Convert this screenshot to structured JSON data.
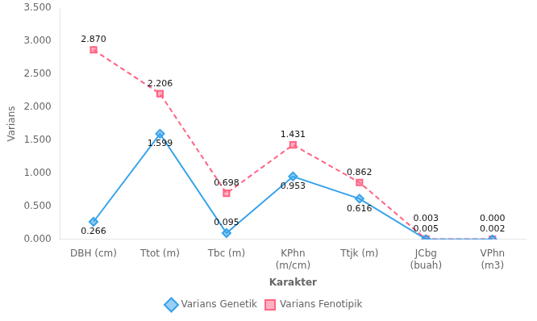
{
  "chart_data": {
    "type": "line",
    "categories": [
      "DBH (cm)",
      "Ttot (m)",
      "Tbc (m)",
      "KPhn\n(m/cm)",
      "Ttjk (m)",
      "JCbg\n(buah)",
      "VPhn\n(m3)"
    ],
    "series": [
      {
        "name": "Varians Genetik",
        "marker": "diamond",
        "line_style": "solid",
        "values": [
          0.266,
          1.599,
          0.095,
          0.953,
          0.616,
          0.003,
          0.0
        ],
        "value_labels": [
          "0.266",
          "1.599",
          "0.095",
          "0.953",
          "0.616",
          "0.003",
          "0.000"
        ]
      },
      {
        "name": "Varians Fenotipik",
        "marker": "square",
        "line_style": "dashed",
        "values": [
          2.87,
          2.206,
          0.698,
          1.431,
          0.862,
          0.005,
          0.002
        ],
        "value_labels": [
          "2.870",
          "2.206",
          "0.698",
          "1.431",
          "0.862",
          "0.005",
          "0.002"
        ]
      }
    ],
    "xlabel": "Karakter",
    "ylabel": "Varians",
    "ylim": [
      0.0,
      3.5
    ],
    "yticks": [
      {
        "value": 0,
        "label": "0.000"
      },
      {
        "value": 0.5,
        "label": "0.500"
      },
      {
        "value": 1,
        "label": "1.000"
      },
      {
        "value": 1.5,
        "label": "1.500"
      },
      {
        "value": 2,
        "label": "2.000"
      },
      {
        "value": 2.5,
        "label": "2.500"
      },
      {
        "value": 3,
        "label": "3.000"
      },
      {
        "value": 3.5,
        "label": "3.500"
      }
    ],
    "grid": false,
    "legend": "bottom",
    "data_labels": true
  }
}
